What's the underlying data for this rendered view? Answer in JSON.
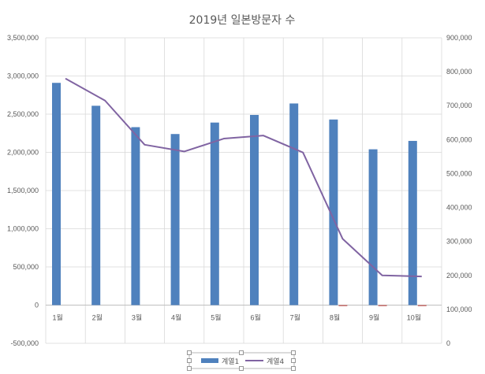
{
  "chart_data": {
    "type": "bar",
    "title": "2019년 일본방문자 수",
    "categories": [
      "1월",
      "2월",
      "3월",
      "4월",
      "5월",
      "6월",
      "7월",
      "8월",
      "9월",
      "10월"
    ],
    "series": [
      {
        "name": "계열1",
        "type": "bar",
        "axis": "left",
        "color": "#4f81bd",
        "values": [
          2910000,
          2610000,
          2330000,
          2240000,
          2390000,
          2490000,
          2640000,
          2430000,
          2040000,
          2150000
        ]
      },
      {
        "name": "계열4",
        "type": "line",
        "axis": "right",
        "color": "#8064a2",
        "values": [
          780000,
          715000,
          585000,
          565000,
          603000,
          612000,
          562000,
          308000,
          200000,
          197000
        ]
      },
      {
        "name": "",
        "type": "bar",
        "axis": "left",
        "color": "#c0504d",
        "values": [
          0,
          0,
          0,
          0,
          0,
          0,
          0,
          -10000,
          -10000,
          -10000
        ]
      }
    ],
    "y_left": {
      "lim": [
        -500000,
        3500000
      ],
      "ticks": [
        -500000,
        0,
        500000,
        1000000,
        1500000,
        2000000,
        2500000,
        3000000,
        3500000
      ],
      "tick_labels": [
        "-500,000",
        "0",
        "500,000",
        "1,000,000",
        "1,500,000",
        "2,000,000",
        "2,500,000",
        "3,000,000",
        "3,500,000"
      ]
    },
    "y_right": {
      "lim": [
        0,
        900000
      ],
      "ticks": [
        0,
        100000,
        200000,
        300000,
        400000,
        500000,
        600000,
        700000,
        800000,
        900000
      ],
      "tick_labels": [
        "0",
        "100,000",
        "200,000",
        "300,000",
        "400,000",
        "500,000",
        "600,000",
        "700,000",
        "800,000",
        "900,000"
      ]
    },
    "grid": true,
    "legend_position": "bottom"
  }
}
